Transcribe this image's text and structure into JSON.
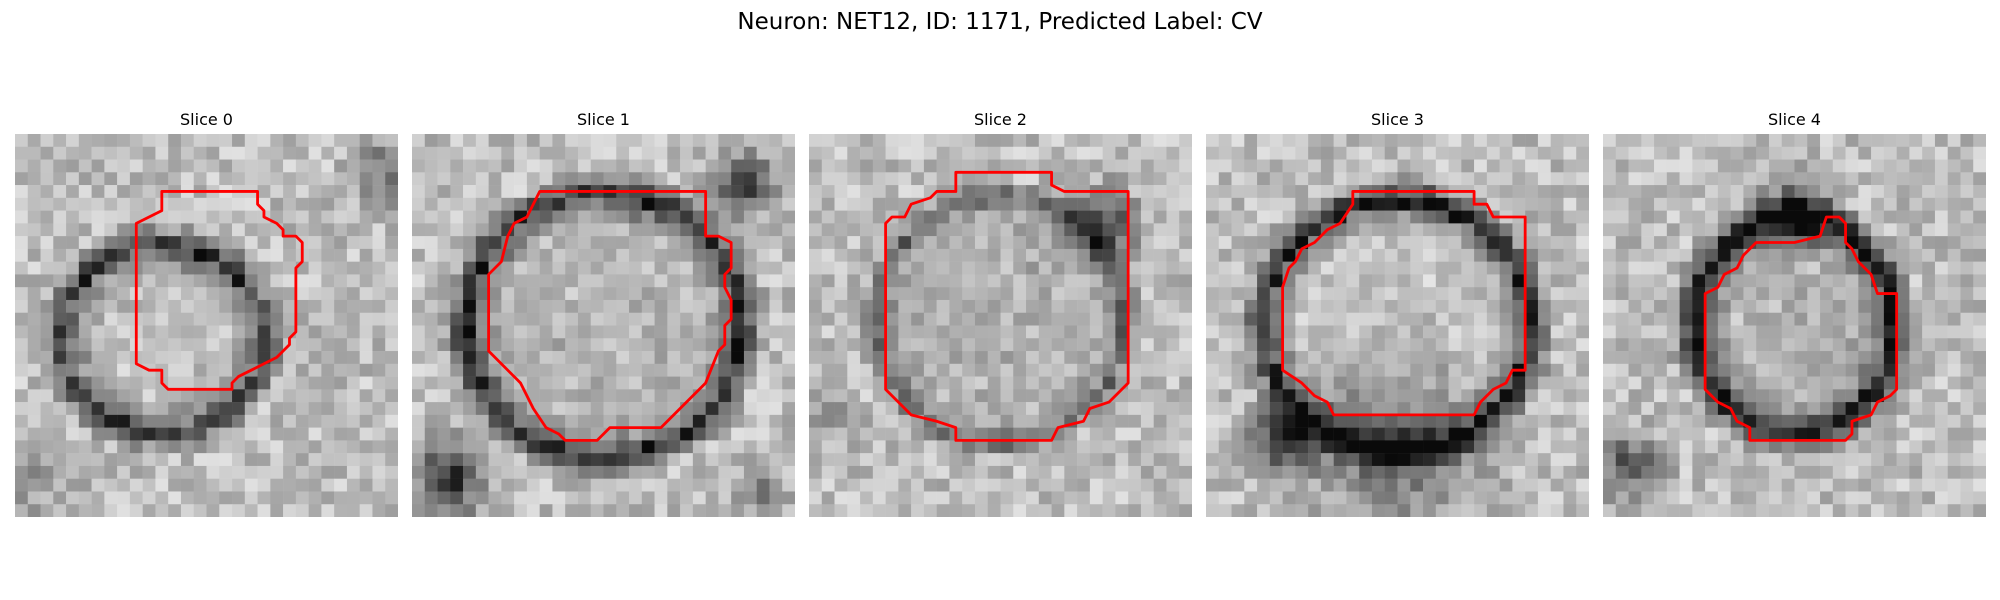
{
  "figure": {
    "title": "Neuron: NET12, ID: 1171, Predicted Label: CV"
  },
  "panels": [
    {
      "title": "Slice 0"
    },
    {
      "title": "Slice 1"
    },
    {
      "title": "Slice 2"
    },
    {
      "title": "Slice 3"
    },
    {
      "title": "Slice 4"
    }
  ],
  "colors": {
    "contour": "#ff0000",
    "background": "#ffffff",
    "image_colormap": "grayscale"
  }
}
